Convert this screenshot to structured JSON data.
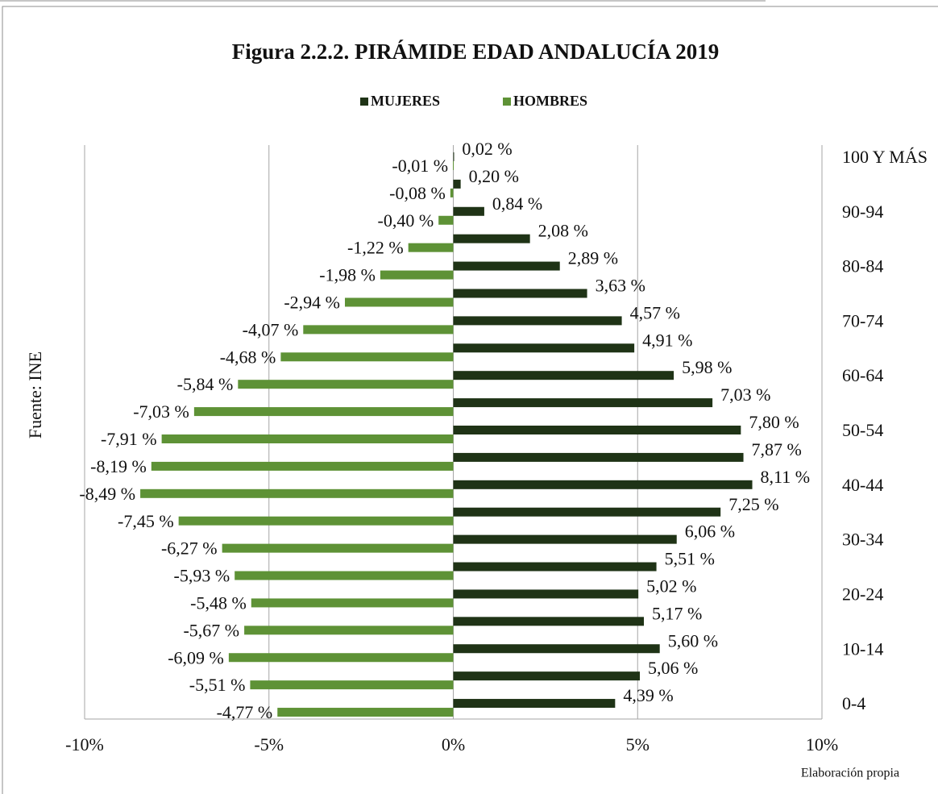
{
  "chart_data": {
    "type": "bar",
    "orientation": "horizontal",
    "title": "Figura 2.2.2. PIRÁMIDE EDAD ANDALUCÍA 2019",
    "y_label": "Fuente: INE",
    "annotation": "Elaboración propia",
    "categories": [
      "0-4",
      null,
      "10-14",
      null,
      "20-24",
      null,
      "30-34",
      null,
      "40-44",
      null,
      "50-54",
      null,
      "60-64",
      null,
      "70-74",
      null,
      "80-84",
      null,
      "90-94",
      null,
      "100 Y MÁS"
    ],
    "series": [
      {
        "name": "MUJERES",
        "color": "#1f3316",
        "values": [
          4.39,
          5.06,
          5.6,
          5.17,
          5.02,
          5.51,
          6.06,
          7.25,
          8.11,
          7.87,
          7.8,
          7.03,
          5.98,
          4.91,
          4.57,
          3.63,
          2.89,
          2.08,
          0.84,
          0.2,
          0.02
        ],
        "value_labels": [
          "4,39 %",
          "5,06 %",
          "5,60 %",
          "5,17 %",
          "5,02 %",
          "5,51 %",
          "6,06 %",
          "7,25 %",
          "8,11 %",
          "7,87 %",
          "7,80 %",
          "7,03 %",
          "5,98 %",
          "4,91 %",
          "4,57 %",
          "3,63 %",
          "2,89 %",
          "2,08 %",
          "0,84 %",
          "0,20 %",
          "0,02 %"
        ]
      },
      {
        "name": "HOMBRES",
        "color": "#5e9236",
        "values": [
          -4.77,
          -5.51,
          -6.09,
          -5.67,
          -5.48,
          -5.93,
          -6.27,
          -7.45,
          -8.49,
          -8.19,
          -7.91,
          -7.03,
          -5.84,
          -4.68,
          -4.07,
          -2.94,
          -1.98,
          -1.22,
          -0.4,
          -0.08,
          -0.01
        ],
        "value_labels": [
          "-4,77 %",
          "-5,51 %",
          "-6,09 %",
          "-5,67 %",
          "-5,48 %",
          "-5,93 %",
          "-6,27 %",
          "-7,45 %",
          "-8,49 %",
          "-8,19 %",
          "-7,91 %",
          "-7,03 %",
          "-5,84 %",
          "-4,68 %",
          "-4,07 %",
          "-2,94 %",
          "-1,98 %",
          "-1,22 %",
          "-0,40 %",
          "-0,08 %",
          "-0,01 %"
        ]
      }
    ],
    "xlim": [
      -10,
      10
    ],
    "xticks": [
      {
        "value": -10,
        "label": "-10%"
      },
      {
        "value": -5,
        "label": "-5%"
      },
      {
        "value": 0,
        "label": "0%"
      },
      {
        "value": 5,
        "label": "5%"
      },
      {
        "value": 10,
        "label": "10%"
      }
    ],
    "grid": true
  }
}
